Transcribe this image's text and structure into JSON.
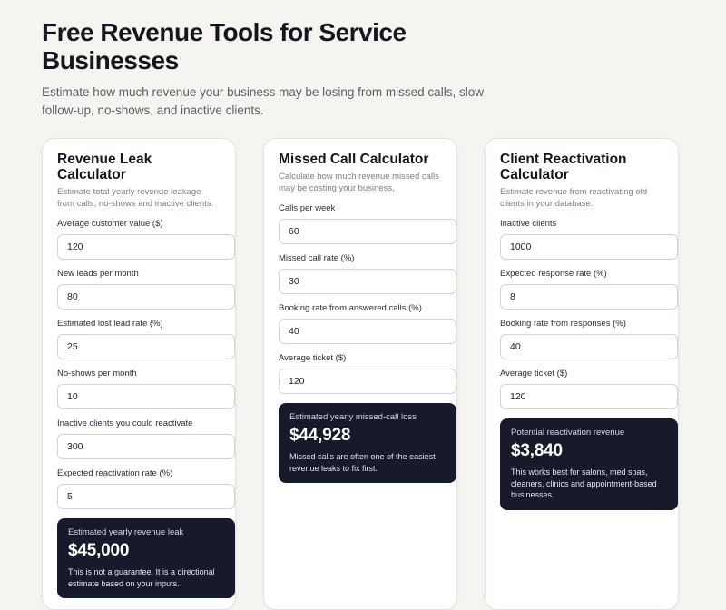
{
  "page": {
    "title": "Free Revenue Tools for Service Businesses",
    "subtitle": "Estimate how much revenue your business may be losing from missed calls, slow follow-up, no-shows, and inactive clients."
  },
  "cards": [
    {
      "title": "Revenue Leak Calculator",
      "description": "Estimate total yearly revenue leakage from calls, no-shows and inactive clients.",
      "fields": [
        {
          "label": "Average customer value ($)",
          "value": "120"
        },
        {
          "label": "New leads per month",
          "value": "80"
        },
        {
          "label": "Estimated lost lead rate (%)",
          "value": "25"
        },
        {
          "label": "No-shows per month",
          "value": "10"
        },
        {
          "label": "Inactive clients you could reactivate",
          "value": "300"
        },
        {
          "label": "Expected reactivation rate (%)",
          "value": "5"
        }
      ],
      "result": {
        "label": "Estimated yearly revenue leak",
        "value": "$45,000",
        "note": "This is not a guarantee. It is a directional estimate based on your inputs."
      }
    },
    {
      "title": "Missed Call Calculator",
      "description": "Calculate how much revenue missed calls may be costing your business.",
      "fields": [
        {
          "label": "Calls per week",
          "value": "60"
        },
        {
          "label": "Missed call rate (%)",
          "value": "30"
        },
        {
          "label": "Booking rate from answered calls (%)",
          "value": "40"
        },
        {
          "label": "Average ticket ($)",
          "value": "120"
        }
      ],
      "result": {
        "label": "Estimated yearly missed-call loss",
        "value": "$44,928",
        "note": "Missed calls are often one of the easiest revenue leaks to fix first."
      }
    },
    {
      "title": "Client Reactivation Calculator",
      "description": "Estimate revenue from reactivating old clients in your database.",
      "fields": [
        {
          "label": "Inactive clients",
          "value": "1000"
        },
        {
          "label": "Expected response rate (%)",
          "value": "8"
        },
        {
          "label": "Booking rate from responses (%)",
          "value": "40"
        },
        {
          "label": "Average ticket ($)",
          "value": "120"
        }
      ],
      "result": {
        "label": "Potential reactivation revenue",
        "value": "$3,840",
        "note": "This works best for salons, med spas, cleaners, clinics and appointment-based businesses."
      }
    }
  ],
  "colors": {
    "background": "#f6f4f1",
    "card": "#ffffff",
    "result_panel": "#161a2b"
  }
}
